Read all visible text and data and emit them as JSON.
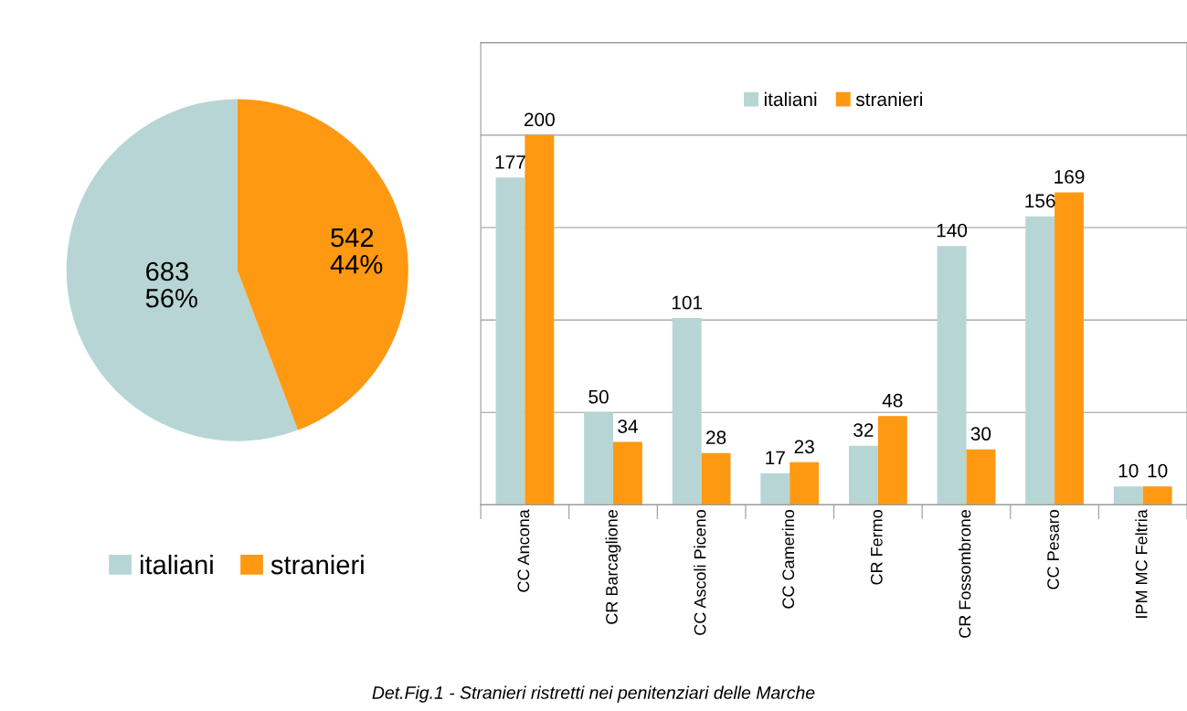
{
  "chart_data": [
    {
      "type": "pie",
      "categories": [
        "italiani",
        "stranieri"
      ],
      "values": [
        683,
        542
      ],
      "colors": [
        "#b7d5d4",
        "#ff9912"
      ],
      "value_labels": [
        "683\n56%",
        "542\n44%"
      ],
      "legend": "bottom"
    },
    {
      "type": "bar",
      "categories": [
        "CC Ancona",
        "CR Barcaglione",
        "CC Ascoli Piceno",
        "CC Camerino",
        "CR Fermo",
        "CR Fossombrone",
        "CC Pesaro",
        "IPM MC Feltria"
      ],
      "series": [
        {
          "name": "italiani",
          "color": "#b7d5d4",
          "values": [
            177,
            50,
            101,
            17,
            32,
            140,
            156,
            10
          ]
        },
        {
          "name": "stranieri",
          "color": "#ff9912",
          "values": [
            200,
            34,
            28,
            23,
            48,
            30,
            169,
            10
          ]
        }
      ],
      "ylim": [
        0,
        250
      ],
      "yticks": [
        {
          "value": 0,
          "label": null
        },
        {
          "value": 50,
          "label": null
        },
        {
          "value": 100,
          "label": null
        },
        {
          "value": 150,
          "label": null
        },
        {
          "value": 200,
          "label": null
        },
        {
          "value": 250,
          "label": null
        }
      ],
      "grid": "y",
      "tick_labels": "x",
      "data_labels": true,
      "legend": "top",
      "annotations": [
        "Det.Fig.1 - Stranieri ristretti nei penitenziari delle Marche"
      ]
    }
  ]
}
